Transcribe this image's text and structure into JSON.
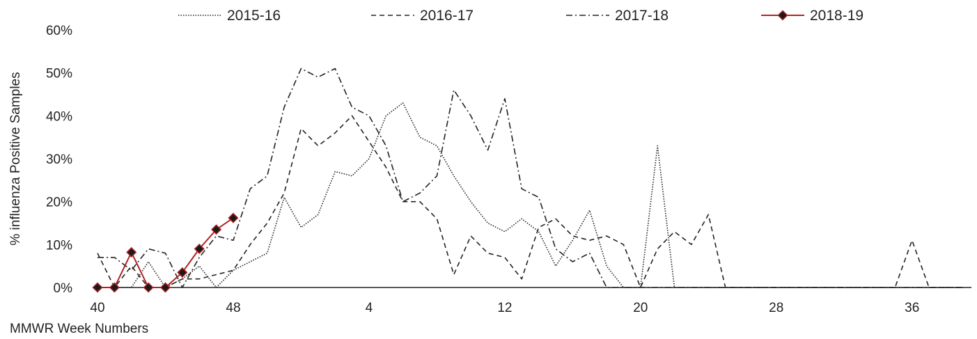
{
  "chart_data": {
    "type": "line",
    "title": "",
    "xlabel": "MMWR Week Numbers",
    "ylabel": "% influenza Positive Samples",
    "x_ticks": [
      "40",
      "48",
      "4",
      "12",
      "20",
      "28",
      "36"
    ],
    "y_ticks": [
      "0%",
      "10%",
      "20%",
      "30%",
      "40%",
      "50%",
      "60%"
    ],
    "ylim": [
      0,
      60
    ],
    "x_index_range": [
      0,
      51
    ],
    "grid": false,
    "legend_position": "top",
    "series": [
      {
        "name": "2015-16",
        "style": "dotted",
        "color": "#222222",
        "values": [
          0,
          0,
          0,
          6,
          0,
          2,
          5,
          0,
          4,
          6,
          8,
          21,
          14,
          17,
          27,
          26,
          30,
          40,
          43,
          35,
          33,
          26,
          20,
          15,
          13,
          16,
          13,
          5,
          11,
          18,
          5,
          0,
          0,
          33,
          0,
          0,
          0,
          0,
          0,
          0,
          0,
          0,
          0,
          0,
          0,
          0,
          0,
          0,
          0,
          0,
          0,
          0
        ]
      },
      {
        "name": "2016-17",
        "style": "dashed",
        "color": "#222222",
        "values": [
          8,
          0,
          5,
          0,
          0,
          2,
          2,
          3,
          4,
          10,
          15,
          22,
          37,
          33,
          36,
          40,
          34,
          28,
          20,
          20,
          16,
          3,
          12,
          8,
          7,
          2,
          14,
          16,
          12,
          11,
          12,
          10,
          0,
          9,
          13,
          10,
          17,
          0,
          0,
          0,
          0,
          0,
          0,
          0,
          0,
          0,
          0,
          0,
          11,
          0,
          0,
          0
        ]
      },
      {
        "name": "2017-18",
        "style": "dashdot",
        "color": "#222222",
        "values": [
          7,
          7,
          4,
          9,
          8,
          0,
          7,
          12,
          11,
          23,
          26,
          42,
          51,
          49,
          51,
          42,
          40,
          33,
          20,
          22,
          26,
          46,
          40,
          32,
          44,
          23,
          21,
          9,
          6,
          8,
          0,
          0,
          0,
          0,
          0,
          0,
          0,
          0,
          0,
          0,
          0,
          0,
          0,
          0,
          0,
          0,
          0,
          0,
          0,
          0,
          0,
          0
        ]
      },
      {
        "name": "2018-19",
        "style": "solid-marker",
        "color": "#b22222",
        "values": [
          0,
          0,
          8.2,
          0,
          0,
          3.5,
          9,
          13.5,
          16.2
        ]
      }
    ]
  }
}
